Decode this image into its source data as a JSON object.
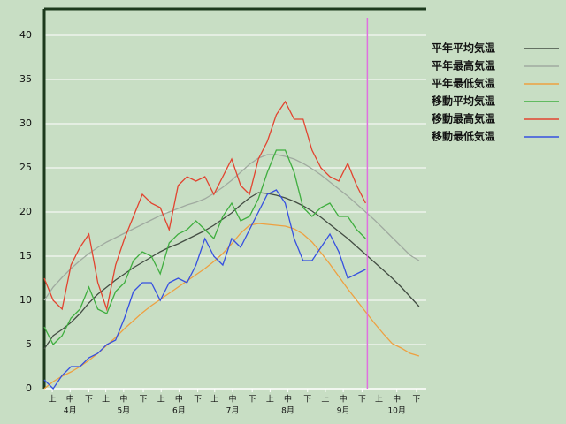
{
  "chart_data": {
    "type": "line",
    "background": "#c8dec4",
    "grid": true,
    "legend": "right",
    "xlim": [
      0,
      214
    ],
    "ylim": [
      0,
      43
    ],
    "yticks": [
      0,
      5,
      10,
      15,
      20,
      25,
      30,
      35,
      40
    ],
    "xticks": [
      {
        "value": 4.5,
        "label": "上"
      },
      {
        "value": 14.5,
        "label": "中"
      },
      {
        "value": 25,
        "label": "下"
      },
      {
        "value": 34.5,
        "label": "上"
      },
      {
        "value": 44.5,
        "label": "中"
      },
      {
        "value": 55.5,
        "label": "下"
      },
      {
        "value": 65.5,
        "label": "上"
      },
      {
        "value": 75.5,
        "label": "中"
      },
      {
        "value": 86,
        "label": "下"
      },
      {
        "value": 95.5,
        "label": "上"
      },
      {
        "value": 105.5,
        "label": "中"
      },
      {
        "value": 116.5,
        "label": "下"
      },
      {
        "value": 126.5,
        "label": "上"
      },
      {
        "value": 136.5,
        "label": "中"
      },
      {
        "value": 147.5,
        "label": "下"
      },
      {
        "value": 157.5,
        "label": "上"
      },
      {
        "value": 167.5,
        "label": "中"
      },
      {
        "value": 178,
        "label": "下"
      },
      {
        "value": 187.5,
        "label": "上"
      },
      {
        "value": 197.5,
        "label": "中"
      },
      {
        "value": 208.5,
        "label": "下"
      }
    ],
    "month_labels": [
      {
        "value": 14.5,
        "label": "4月"
      },
      {
        "value": 44.5,
        "label": "5月"
      },
      {
        "value": 75.5,
        "label": "6月"
      },
      {
        "value": 105.5,
        "label": "7月"
      },
      {
        "value": 136.5,
        "label": "8月"
      },
      {
        "value": 167.5,
        "label": "9月"
      },
      {
        "value": 197.5,
        "label": "10月"
      }
    ],
    "marker": {
      "x": 181,
      "color": "#e070e0"
    },
    "x": [
      0,
      5,
      10,
      15,
      20,
      25,
      30,
      35,
      40,
      45,
      50,
      55,
      60,
      65,
      70,
      75,
      80,
      85,
      90,
      95,
      100,
      105,
      110,
      115,
      120,
      125,
      130,
      135,
      140,
      145,
      150,
      155,
      160,
      165,
      170,
      175,
      180,
      185,
      190,
      195,
      200,
      205,
      210
    ],
    "series": [
      {
        "name": "平年平均気温",
        "color": "#434d43",
        "values": [
          4.5,
          6,
          6.7,
          7.5,
          8.5,
          9.7,
          10.7,
          11.5,
          12.3,
          13,
          13.7,
          14.3,
          14.9,
          15.5,
          16,
          16.4,
          16.9,
          17.4,
          17.9,
          18.5,
          19.2,
          19.9,
          20.8,
          21.6,
          22.2,
          22.1,
          21.9,
          21.6,
          21.2,
          20.7,
          20.1,
          19.4,
          18.6,
          17.8,
          17.0,
          16.1,
          15.2,
          14.3,
          13.4,
          12.5,
          11.5,
          10.4,
          9.3
        ]
      },
      {
        "name": "平年最高気温",
        "color": "#a0aaa0",
        "values": [
          10,
          11.5,
          12.6,
          13.6,
          14.5,
          15.3,
          16,
          16.6,
          17.1,
          17.6,
          18.1,
          18.6,
          19.1,
          19.6,
          20,
          20.4,
          20.8,
          21.1,
          21.5,
          22.1,
          22.8,
          23.6,
          24.5,
          25.4,
          26.1,
          26.5,
          26.5,
          26.3,
          26,
          25.5,
          24.9,
          24.2,
          23.4,
          22.6,
          21.8,
          20.9,
          20,
          19.1,
          18.1,
          17.1,
          16.1,
          15.1,
          14.5
        ]
      },
      {
        "name": "平年最低気温",
        "color": "#eea040",
        "values": [
          0,
          0.8,
          1.4,
          1.9,
          2.5,
          3.2,
          4,
          4.9,
          5.8,
          6.8,
          7.7,
          8.6,
          9.4,
          10.1,
          10.8,
          11.5,
          12.2,
          12.9,
          13.6,
          14.4,
          15.3,
          16.4,
          17.6,
          18.5,
          18.7,
          18.6,
          18.5,
          18.4,
          18.1,
          17.5,
          16.6,
          15.4,
          14.1,
          12.7,
          11.3,
          10,
          8.7,
          7.4,
          6.2,
          5.1,
          4.6,
          4.0,
          3.7
        ]
      },
      {
        "name": "移動平均気温",
        "color": "#3fae3f",
        "values": [
          7,
          5,
          6,
          8,
          9,
          11.5,
          9,
          8.5,
          11,
          12,
          14.5,
          15.5,
          15,
          13,
          16.5,
          17.5,
          18,
          19,
          18,
          17,
          19.5,
          21,
          19,
          19.5,
          21.5,
          24.5,
          27,
          27,
          24.5,
          20.5,
          19.5,
          20.5,
          21,
          19.5,
          19.5,
          18,
          17,
          null,
          null,
          null,
          null,
          null,
          null
        ]
      },
      {
        "name": "移動最高気温",
        "color": "#e2432f",
        "values": [
          12.5,
          10,
          9,
          14,
          16,
          17.5,
          12,
          9,
          14,
          17,
          19.5,
          22,
          21,
          20.5,
          18,
          23,
          24,
          23.5,
          24,
          22,
          24,
          26,
          23,
          22,
          26,
          28,
          31,
          32.5,
          30.5,
          30.5,
          27,
          25,
          24,
          23.5,
          25.5,
          23,
          21,
          null,
          null,
          null,
          null,
          null,
          null
        ]
      },
      {
        "name": "移動最低気温",
        "color": "#3650e0",
        "values": [
          1,
          0,
          1.5,
          2.5,
          2.5,
          3.5,
          4,
          5,
          5.5,
          8,
          11,
          12,
          12,
          10,
          12,
          12.5,
          12,
          14,
          17,
          15,
          14,
          17,
          16,
          18,
          20,
          22,
          22.5,
          21,
          17,
          14.5,
          14.5,
          16,
          17.5,
          15.5,
          12.5,
          13,
          13.5,
          null,
          null,
          null,
          null,
          null,
          null
        ]
      }
    ]
  }
}
